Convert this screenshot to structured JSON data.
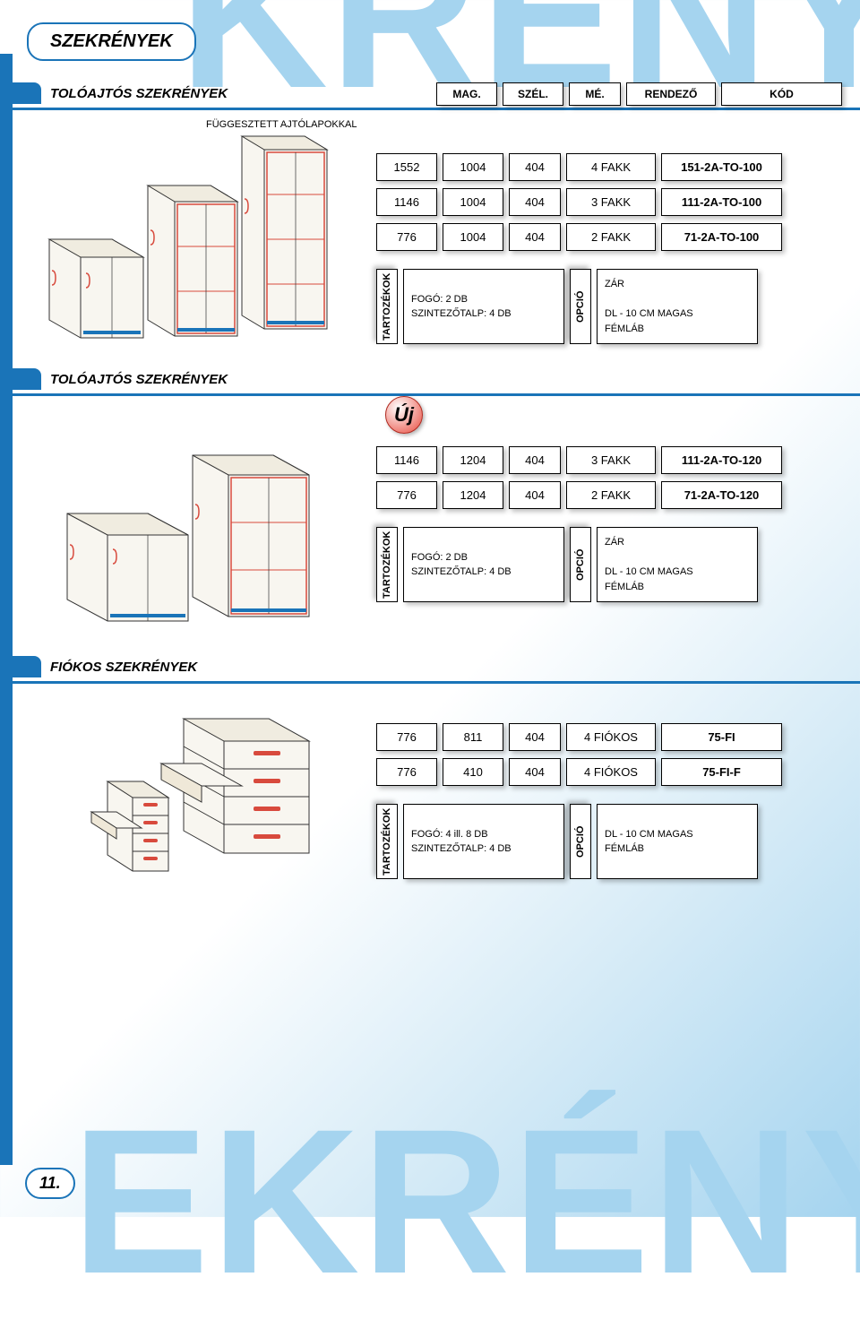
{
  "page_title": "SZEKRÉNYEK",
  "bg_word": "KRÉNYEK",
  "bg_word_bottom": "EKRÉNYEK",
  "page_number": "11.",
  "column_headers_widths": [
    68,
    68,
    58,
    100,
    135
  ],
  "column_headers": [
    "MAG.",
    "SZÉL.",
    "MÉ.",
    "RENDEZŐ",
    "KÓD"
  ],
  "colors": {
    "primary": "#1a74b8",
    "accent_light": "#a5d4ef",
    "border": "#000000",
    "shadow": "rgba(0,0,0,0.25)",
    "badge": "#e84a3d"
  },
  "sections": [
    {
      "title": "TOLÓAJTÓS SZEKRÉNYEK",
      "callout": "FÜGGESZTETT AJTÓLAPOKKAL",
      "show_uj": false,
      "rows": [
        [
          "1552",
          "1004",
          "404",
          "4 FAKK",
          "151-2A-TO-100"
        ],
        [
          "1146",
          "1004",
          "404",
          "3 FAKK",
          "111-2A-TO-100"
        ],
        [
          "776",
          "1004",
          "404",
          "2 FAKK",
          "71-2A-TO-100"
        ]
      ],
      "acc_label": "TARTOZÉKOK",
      "acc_text": [
        "FOGÓ: 2 DB",
        "SZINTEZŐTALP: 4 DB"
      ],
      "opt_label": "OPCIÓ",
      "opt_text": [
        "ZÁR",
        "",
        "DL - 10 CM MAGAS",
        "FÉMLÁB"
      ],
      "acc_widths": [
        24,
        180,
        24,
        180
      ],
      "acc_height": 84
    },
    {
      "title": "TOLÓAJTÓS SZEKRÉNYEK",
      "callout": "",
      "show_uj": true,
      "rows": [
        [
          "1146",
          "1204",
          "404",
          "3 FAKK",
          "111-2A-TO-120"
        ],
        [
          "776",
          "1204",
          "404",
          "2 FAKK",
          "71-2A-TO-120"
        ]
      ],
      "acc_label": "TARTOZÉKOK",
      "acc_text": [
        "FOGÓ: 2 DB",
        "SZINTEZŐTALP: 4 DB"
      ],
      "opt_label": "OPCIÓ",
      "opt_text": [
        "ZÁR",
        "",
        "DL - 10 CM MAGAS",
        "FÉMLÁB"
      ],
      "acc_widths": [
        24,
        180,
        24,
        180
      ],
      "acc_height": 84
    },
    {
      "title": "FIÓKOS SZEKRÉNYEK",
      "callout": "",
      "show_uj": false,
      "rows": [
        [
          "776",
          "811",
          "404",
          "4 FIÓKOS",
          "75-FI"
        ],
        [
          "776",
          "410",
          "404",
          "4 FIÓKOS",
          "75-FI-F"
        ]
      ],
      "acc_label": "TARTOZÉKOK",
      "acc_text": [
        "FOGÓ: 4 ill. 8 DB",
        "SZINTEZŐTALP: 4 DB"
      ],
      "opt_label": "OPCIÓ",
      "opt_text": [
        "DL - 10 CM MAGAS",
        "FÉMLÁB"
      ],
      "acc_widths": [
        24,
        180,
        24,
        180
      ],
      "acc_height": 84
    }
  ],
  "uj_label": "Új"
}
